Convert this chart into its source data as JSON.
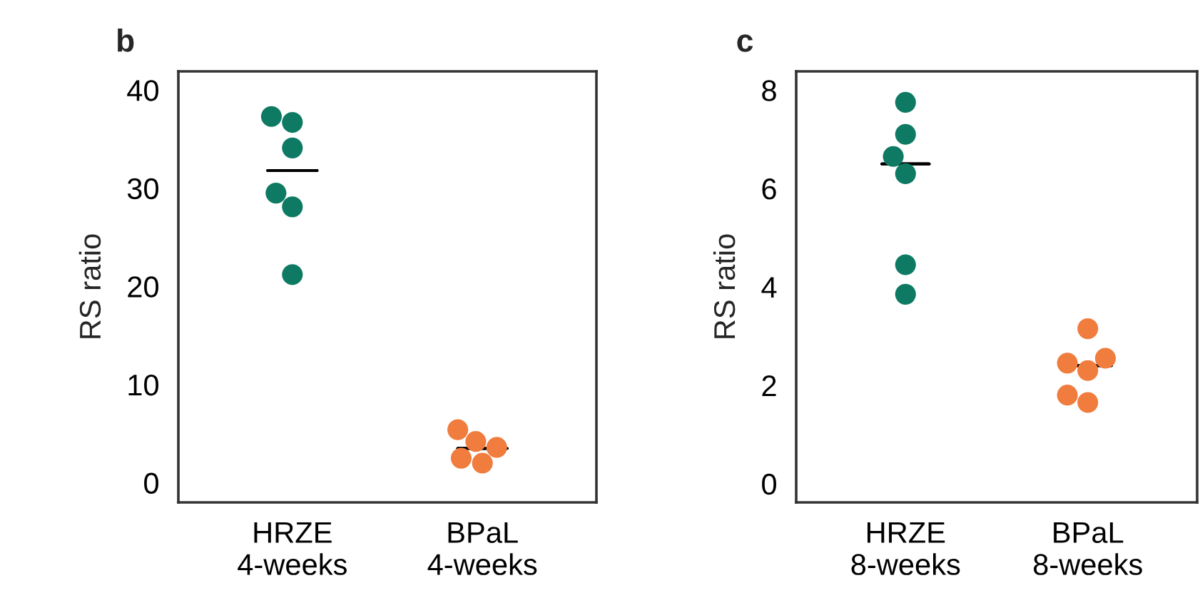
{
  "chart_data": [
    {
      "type": "scatter",
      "title": "b",
      "ylabel": "RS ratio",
      "categories": [
        "HRZE\n4-weeks",
        "BPaL\n4-weeks"
      ],
      "ylim": [
        -2,
        41.9
      ],
      "yticks": [
        0,
        10,
        20,
        30,
        40
      ],
      "grid": false,
      "legend": false,
      "marker": "circle",
      "series": [
        {
          "color": "#0e7a63",
          "x": [
            "HRZE\n4-weeks",
            "HRZE\n4-weeks",
            "HRZE\n4-weeks",
            "HRZE\n4-weeks",
            "HRZE\n4-weeks",
            "HRZE\n4-weeks"
          ],
          "values": [
            37.3,
            36.7,
            34.1,
            29.5,
            28.1,
            21.2
          ]
        },
        {
          "color": "#f07c3e",
          "x": [
            "BPaL\n4-weeks",
            "BPaL\n4-weeks",
            "BPaL\n4-weeks",
            "BPaL\n4-weeks",
            "BPaL\n4-weeks"
          ],
          "values": [
            5.4,
            4.2,
            3.6,
            2.5,
            2.0
          ]
        },
        {
          "type": "box",
          "color": "#000000",
          "boxes": [
            {
              "low": 31.8,
              "q1": 31.8,
              "median": 31.8,
              "q3": 31.8,
              "high": 31.8
            },
            {
              "low": 3.5,
              "q1": 3.5,
              "median": 3.5,
              "q3": 3.5,
              "high": 3.5
            }
          ]
        }
      ]
    },
    {
      "type": "scatter",
      "title": "c",
      "ylabel": "RS ratio",
      "categories": [
        "HRZE\n8-weeks",
        "BPaL\n8-weeks"
      ],
      "ylim": [
        -0.38,
        8.38
      ],
      "yticks": [
        0,
        2,
        4,
        6,
        8
      ],
      "grid": false,
      "legend": false,
      "marker": "circle",
      "series": [
        {
          "color": "#0e7a63",
          "x": [
            "HRZE\n8-weeks",
            "HRZE\n8-weeks",
            "HRZE\n8-weeks",
            "HRZE\n8-weeks",
            "HRZE\n8-weeks",
            "HRZE\n8-weeks"
          ],
          "values": [
            7.75,
            7.1,
            6.65,
            6.3,
            4.45,
            3.85
          ]
        },
        {
          "color": "#f07c3e",
          "x": [
            "BPaL\n8-weeks",
            "BPaL\n8-weeks",
            "BPaL\n8-weeks",
            "BPaL\n8-weeks",
            "BPaL\n8-weeks",
            "BPaL\n8-weeks"
          ],
          "values": [
            3.15,
            2.55,
            2.45,
            2.3,
            1.8,
            1.65
          ]
        },
        {
          "type": "box",
          "color": "#000000",
          "boxes": [
            {
              "low": 6.5,
              "q1": 6.5,
              "median": 6.5,
              "q3": 6.5,
              "high": 6.5
            },
            {
              "low": 2.4,
              "q1": 2.4,
              "median": 2.4,
              "q3": 2.4,
              "high": 2.4
            }
          ]
        }
      ]
    }
  ]
}
